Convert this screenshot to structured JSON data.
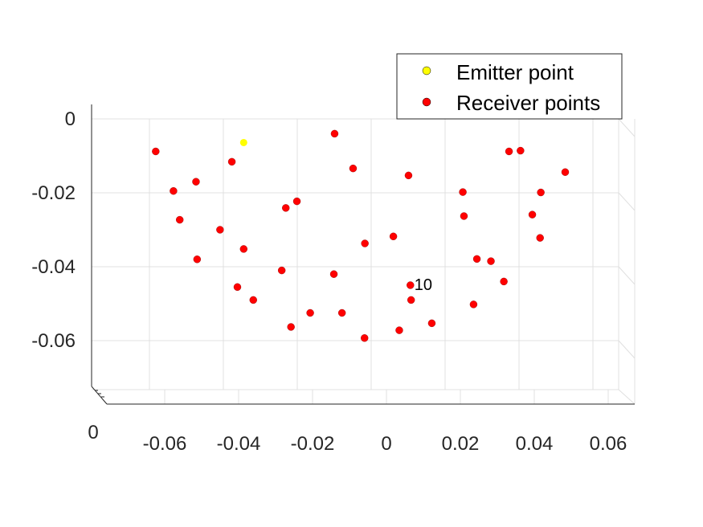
{
  "chart_data": {
    "type": "scatter",
    "title": "",
    "xlabel": "",
    "ylabel": "",
    "xlim": [
      -0.072,
      0.072
    ],
    "zlim": [
      -0.074,
      0.003
    ],
    "grid": true,
    "legend_position": "top-right",
    "x_ticks": [
      {
        "value": -0.06,
        "label": "-0.06"
      },
      {
        "value": -0.04,
        "label": "-0.04"
      },
      {
        "value": -0.02,
        "label": "-0.02"
      },
      {
        "value": 0,
        "label": "0"
      },
      {
        "value": 0.02,
        "label": "0.02"
      },
      {
        "value": 0.04,
        "label": "0.04"
      },
      {
        "value": 0.06,
        "label": "0.06"
      }
    ],
    "z_ticks": [
      {
        "value": 0,
        "label": "0"
      },
      {
        "value": -0.02,
        "label": "-0.02"
      },
      {
        "value": -0.04,
        "label": "-0.04"
      },
      {
        "value": -0.06,
        "label": "-0.06"
      }
    ],
    "y_axis_tick_label": "0",
    "series": [
      {
        "name": "Emitter point",
        "color": "#ffff00",
        "points": [
          {
            "x": -0.0345,
            "z": -0.0064
          }
        ]
      },
      {
        "name": "Receiver points",
        "color": "#ff0000",
        "points": [
          {
            "x": -0.0583,
            "z": -0.0088
          },
          {
            "x": -0.0535,
            "z": -0.0195
          },
          {
            "x": -0.0518,
            "z": -0.0273
          },
          {
            "x": -0.0471,
            "z": -0.038
          },
          {
            "x": -0.0474,
            "z": -0.017
          },
          {
            "x": -0.0409,
            "z": -0.03
          },
          {
            "x": -0.0377,
            "z": -0.0116
          },
          {
            "x": -0.0345,
            "z": -0.0352
          },
          {
            "x": -0.0362,
            "z": -0.0455
          },
          {
            "x": -0.0319,
            "z": -0.049
          },
          {
            "x": -0.0242,
            "z": -0.041
          },
          {
            "x": -0.0231,
            "z": -0.0241
          },
          {
            "x": -0.0201,
            "z": -0.0223
          },
          {
            "x": -0.0217,
            "z": -0.0563
          },
          {
            "x": -0.0165,
            "z": -0.0525
          },
          {
            "x": -0.0099,
            "z": -0.004
          },
          {
            "x": -0.0101,
            "z": -0.042
          },
          {
            "x": -0.0079,
            "z": -0.0525
          },
          {
            "x": -0.0049,
            "z": -0.0134
          },
          {
            "x": -0.0017,
            "z": -0.0337
          },
          {
            "x": -0.0018,
            "z": -0.0593
          },
          {
            "x": 0.006,
            "z": -0.0318
          },
          {
            "x": 0.0076,
            "z": -0.0572
          },
          {
            "x": 0.0101,
            "z": -0.0153
          },
          {
            "x": 0.0106,
            "z": -0.045,
            "label": "10"
          },
          {
            "x": 0.0108,
            "z": -0.049
          },
          {
            "x": 0.0164,
            "z": -0.0553
          },
          {
            "x": 0.0248,
            "z": -0.0198
          },
          {
            "x": 0.0251,
            "z": -0.0263
          },
          {
            "x": 0.0277,
            "z": -0.0502
          },
          {
            "x": 0.0286,
            "z": -0.0379
          },
          {
            "x": 0.0324,
            "z": -0.0385
          },
          {
            "x": 0.0359,
            "z": -0.044
          },
          {
            "x": 0.0373,
            "z": -0.0088
          },
          {
            "x": 0.0404,
            "z": -0.0086
          },
          {
            "x": 0.0436,
            "z": -0.0259
          },
          {
            "x": 0.0459,
            "z": -0.0199
          },
          {
            "x": 0.0457,
            "z": -0.0322
          },
          {
            "x": 0.0525,
            "z": -0.0144
          }
        ]
      }
    ]
  }
}
